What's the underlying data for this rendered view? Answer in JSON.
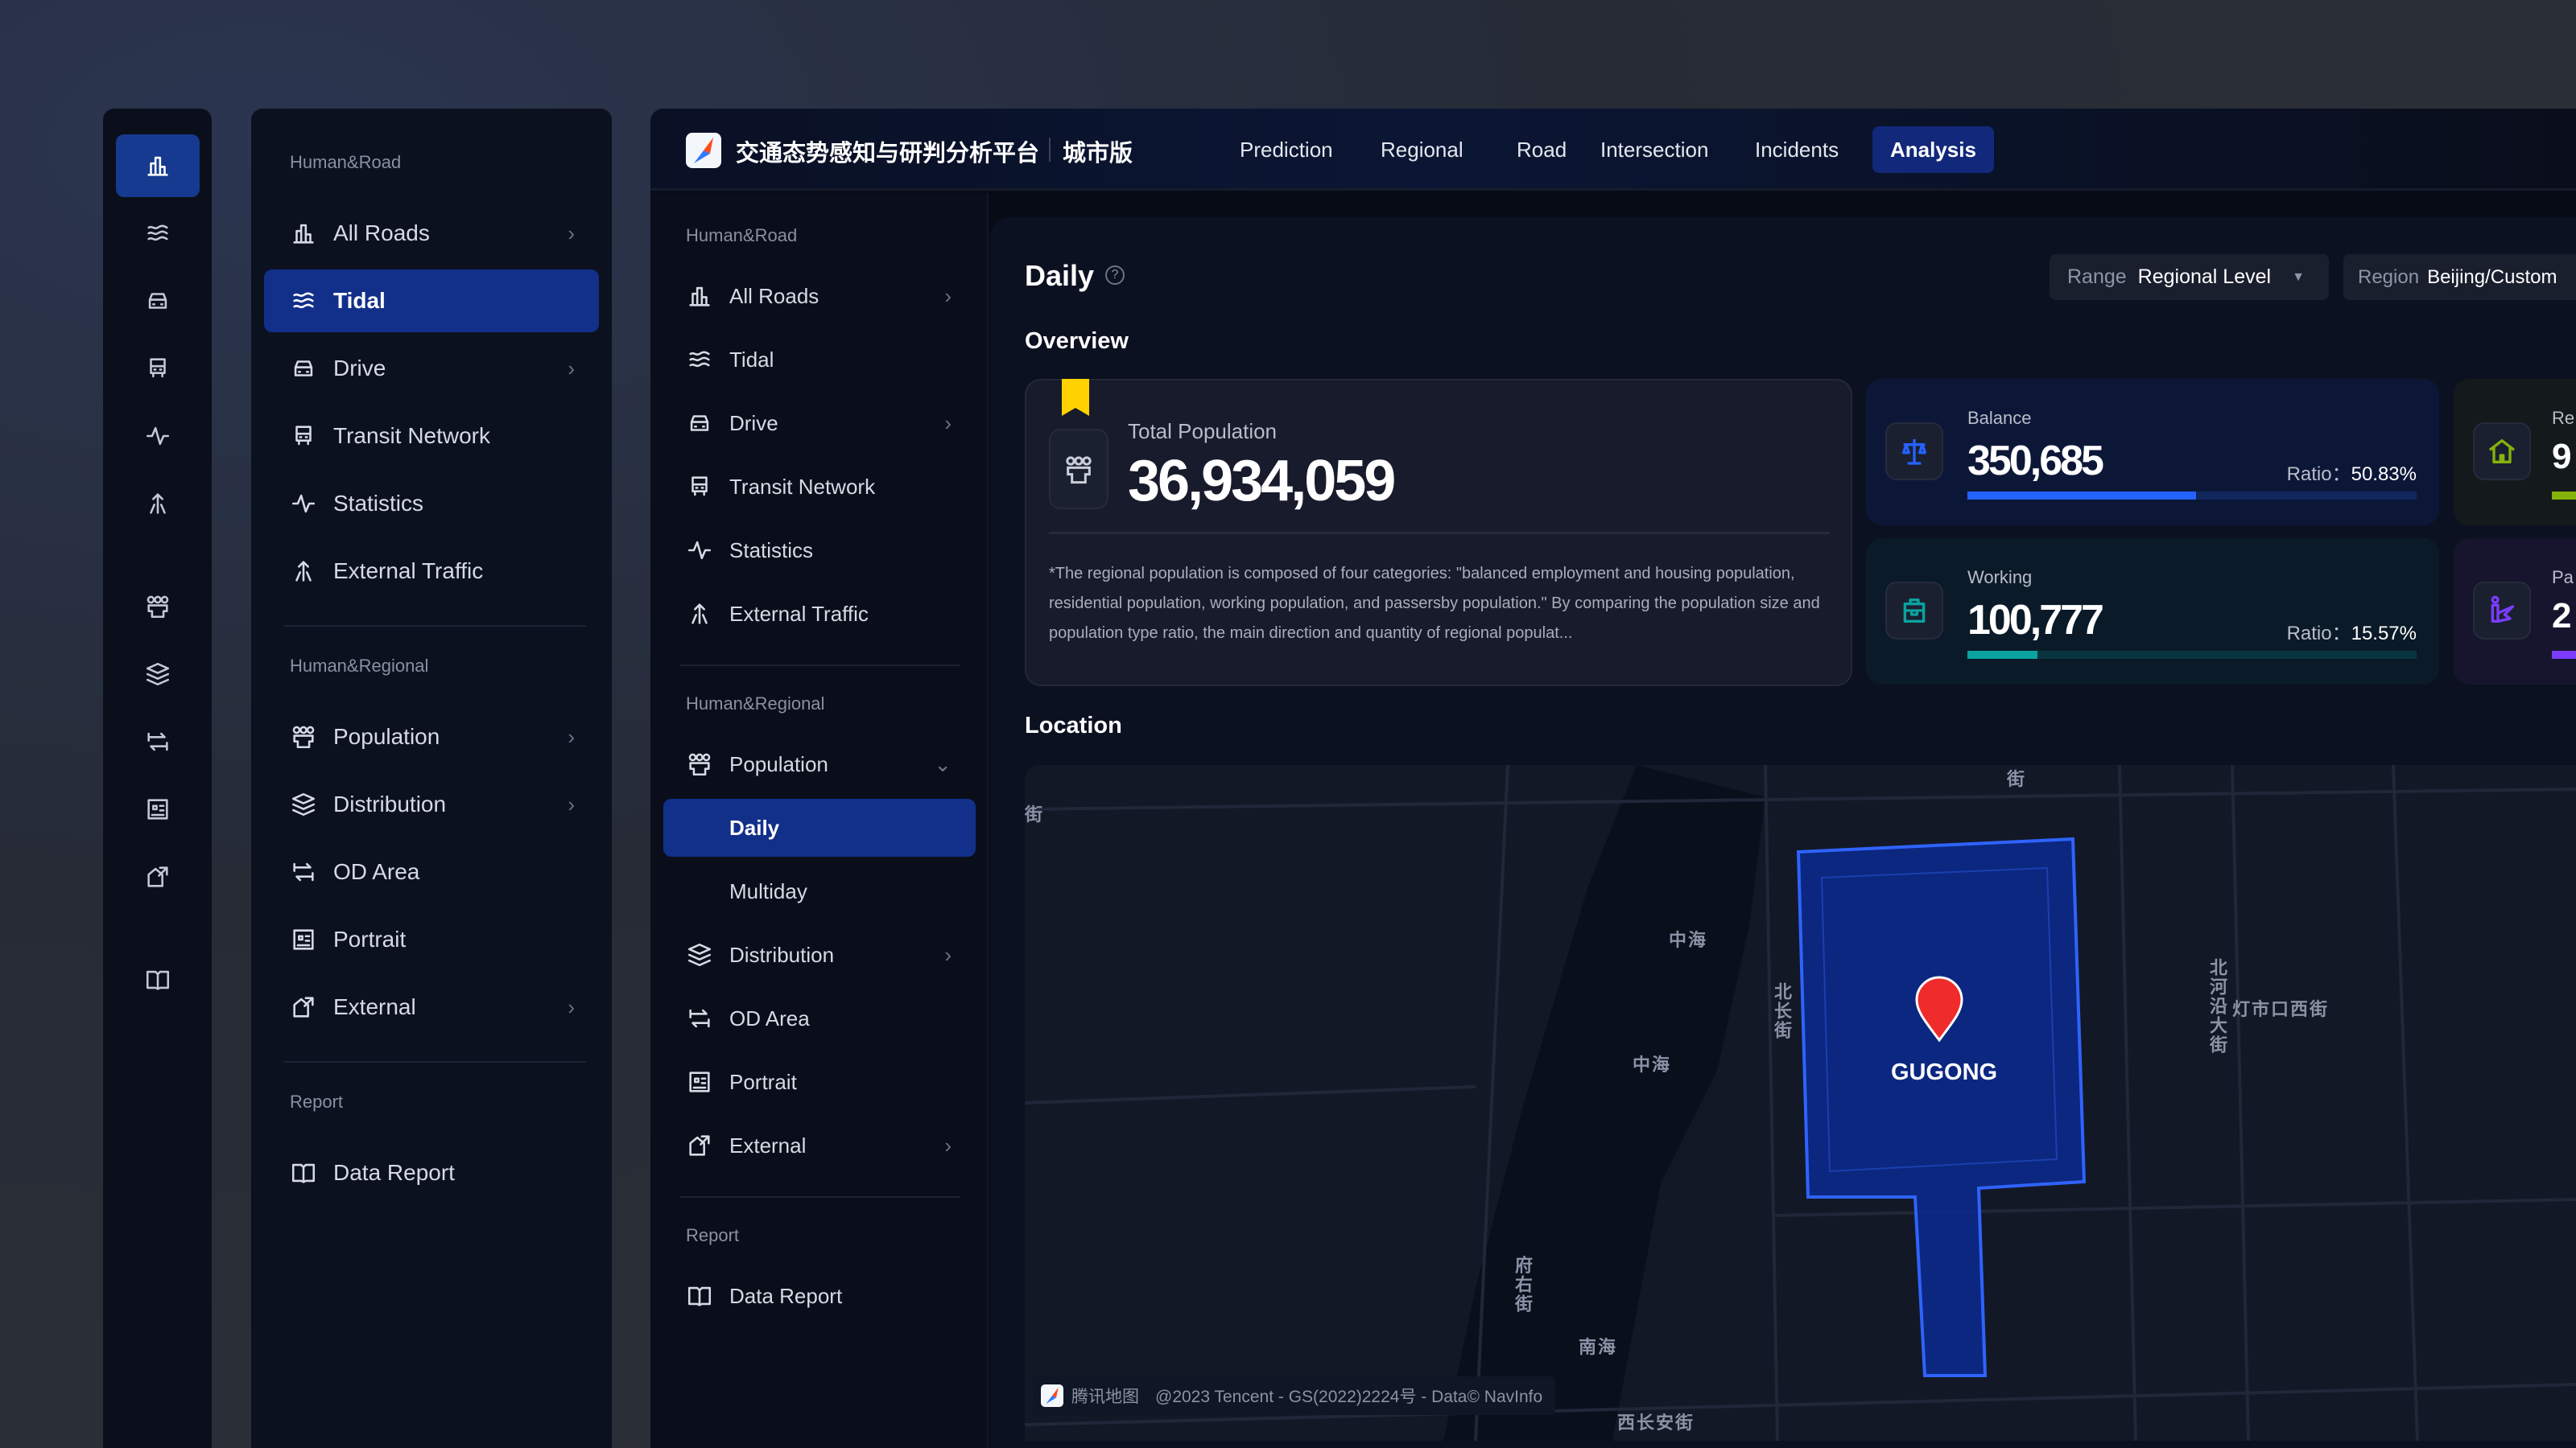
{
  "rail": {
    "icons": [
      "bar-chart-icon",
      "tidal-icon",
      "car-icon",
      "bus-icon",
      "pulse-icon",
      "external-traffic-icon",
      "population-icon",
      "layers-icon",
      "od-icon",
      "portrait-icon",
      "external-icon",
      "book-icon"
    ]
  },
  "sidebar": {
    "section1": "Human&Road",
    "road_items": [
      {
        "label": "All Roads",
        "icon": "bar-chart-icon",
        "chevron": true
      },
      {
        "label": "Tidal",
        "icon": "tidal-icon"
      },
      {
        "label": "Drive",
        "icon": "car-icon",
        "chevron": true
      },
      {
        "label": "Transit Network",
        "icon": "bus-icon"
      },
      {
        "label": "Statistics",
        "icon": "pulse-icon"
      },
      {
        "label": "External Traffic",
        "icon": "external-traffic-icon"
      }
    ],
    "section2": "Human&Regional",
    "regional_items": [
      {
        "label": "Population",
        "icon": "population-icon",
        "chevron": true
      },
      {
        "label": "Distribution",
        "icon": "layers-icon",
        "chevron": true
      },
      {
        "label": "OD Area",
        "icon": "od-icon"
      },
      {
        "label": "Portrait",
        "icon": "portrait-icon"
      },
      {
        "label": "External",
        "icon": "external-icon",
        "chevron": true
      }
    ],
    "section3": "Report",
    "report_items": [
      {
        "label": "Data Report",
        "icon": "book-icon"
      }
    ],
    "active": "Tidal"
  },
  "header": {
    "title": "交通态势感知与研判分析平台",
    "edition": "城市版",
    "nav": [
      "Prediction",
      "Regional",
      "Road",
      "Intersection",
      "Incidents",
      "Analysis"
    ],
    "active_nav": "Analysis"
  },
  "inner_sidebar": {
    "active": "Daily",
    "sub_items": [
      "Daily",
      "Multiday"
    ]
  },
  "page": {
    "title": "Daily",
    "help_icon": "question-circle-icon",
    "range_label": "Range",
    "range_value": "Regional Level",
    "region_label": "Region",
    "region_value": "Beijing/Custom",
    "overview": "Overview",
    "location": "Location"
  },
  "overview": {
    "total_label": "Total Population",
    "total_value": "36,934,059",
    "note": "*The regional population is composed of four categories: \"balanced employment and housing population, residential population, working population, and passersby population.\" By comparing the population size and population type ratio, the main direction and quantity of regional populat...",
    "stats": [
      {
        "label": "Balance",
        "value": "350,685",
        "ratio_label": "Ratio：",
        "ratio": "50.83%",
        "percent": 50.83,
        "color": "#2563ff",
        "icon": "balance-scale-icon"
      },
      {
        "label": "Working",
        "value": "100,777",
        "ratio_label": "Ratio：",
        "ratio": "15.57%",
        "percent": 15.57,
        "color": "#0aa3a0",
        "icon": "briefcase-icon"
      },
      {
        "label": "Re",
        "value": "9",
        "color": "#86b30a",
        "icon": "home-icon"
      },
      {
        "label": "Pa",
        "value": "2",
        "color": "#7b3cff",
        "icon": "passerby-icon"
      }
    ]
  },
  "map": {
    "poi": "GUGONG",
    "labels": [
      "中海",
      "中海",
      "南海",
      "北长街",
      "府右街",
      "北河沿大街",
      "灯市口西街",
      "西长安街",
      "街",
      "街"
    ],
    "attribution_brand": "腾讯地图",
    "attribution": "@2023 Tencent - GS(2022)2224号 - Data© NavInfo",
    "region_color": "#1e4fff"
  }
}
